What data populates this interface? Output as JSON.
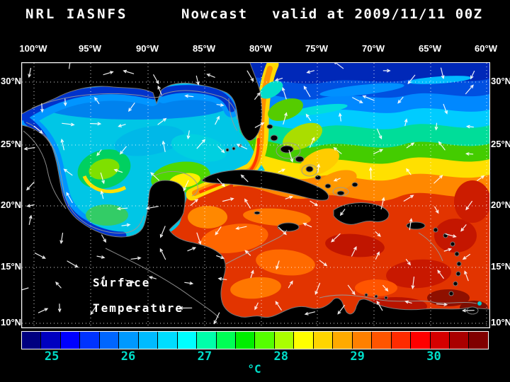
{
  "header": {
    "left": "NRL IASNFS",
    "center": "Nowcast",
    "right": "valid at 2009/11/11 00Z"
  },
  "map": {
    "lon_ticks": [
      "100°W",
      "95°W",
      "90°W",
      "85°W",
      "80°W",
      "75°W",
      "70°W",
      "65°W",
      "60°W"
    ],
    "lat_ticks": [
      "30°N",
      "25°N",
      "20°N",
      "15°N",
      "10°N"
    ],
    "overlay_label": {
      "line1": "Surface",
      "line2": "Temperature"
    }
  },
  "colorbar": {
    "unit": "°C",
    "tick_labels": [
      "25",
      "26",
      "27",
      "28",
      "29",
      "30"
    ],
    "tick_values": [
      25,
      26,
      27,
      28,
      29,
      30
    ],
    "range_min": 24.6,
    "range_max": 30.7,
    "tick_color": "#00ddc8",
    "cell_colors": [
      "#000080",
      "#0000c0",
      "#0000ff",
      "#0033ff",
      "#0066ff",
      "#0099ff",
      "#00bbff",
      "#00ddff",
      "#00ffff",
      "#00ffaa",
      "#00ff55",
      "#00ee00",
      "#55ff00",
      "#aaff00",
      "#ffff00",
      "#ffd500",
      "#ffaa00",
      "#ff8000",
      "#ff5500",
      "#ff2b00",
      "#ff0000",
      "#d50000",
      "#aa0000",
      "#800000"
    ]
  },
  "chart_data": {
    "type": "heatmap",
    "title": "NRL IASNFS Nowcast valid at 2009/11/11 00Z",
    "field": "Surface Temperature",
    "units": "°C",
    "x_ticks": [
      "100°W",
      "95°W",
      "90°W",
      "85°W",
      "80°W",
      "75°W",
      "70°W",
      "65°W",
      "60°W"
    ],
    "y_ticks": [
      "30°N",
      "25°N",
      "20°N",
      "15°N",
      "10°N"
    ],
    "colorbar_ticks": [
      25,
      26,
      27,
      28,
      29,
      30
    ],
    "colorbar_range": [
      24.6,
      30.7
    ],
    "description": "Sea surface temperature nowcast map: Gulf of Mexico ~25-27°C with warm eddy, Gulf Stream warm band along Florida, Caribbean 28-30°C, Atlantic cooling northward to ~25°C; white surface-current vectors overlaid; land masked black.",
    "grid": true,
    "legend_position": "bottom"
  }
}
